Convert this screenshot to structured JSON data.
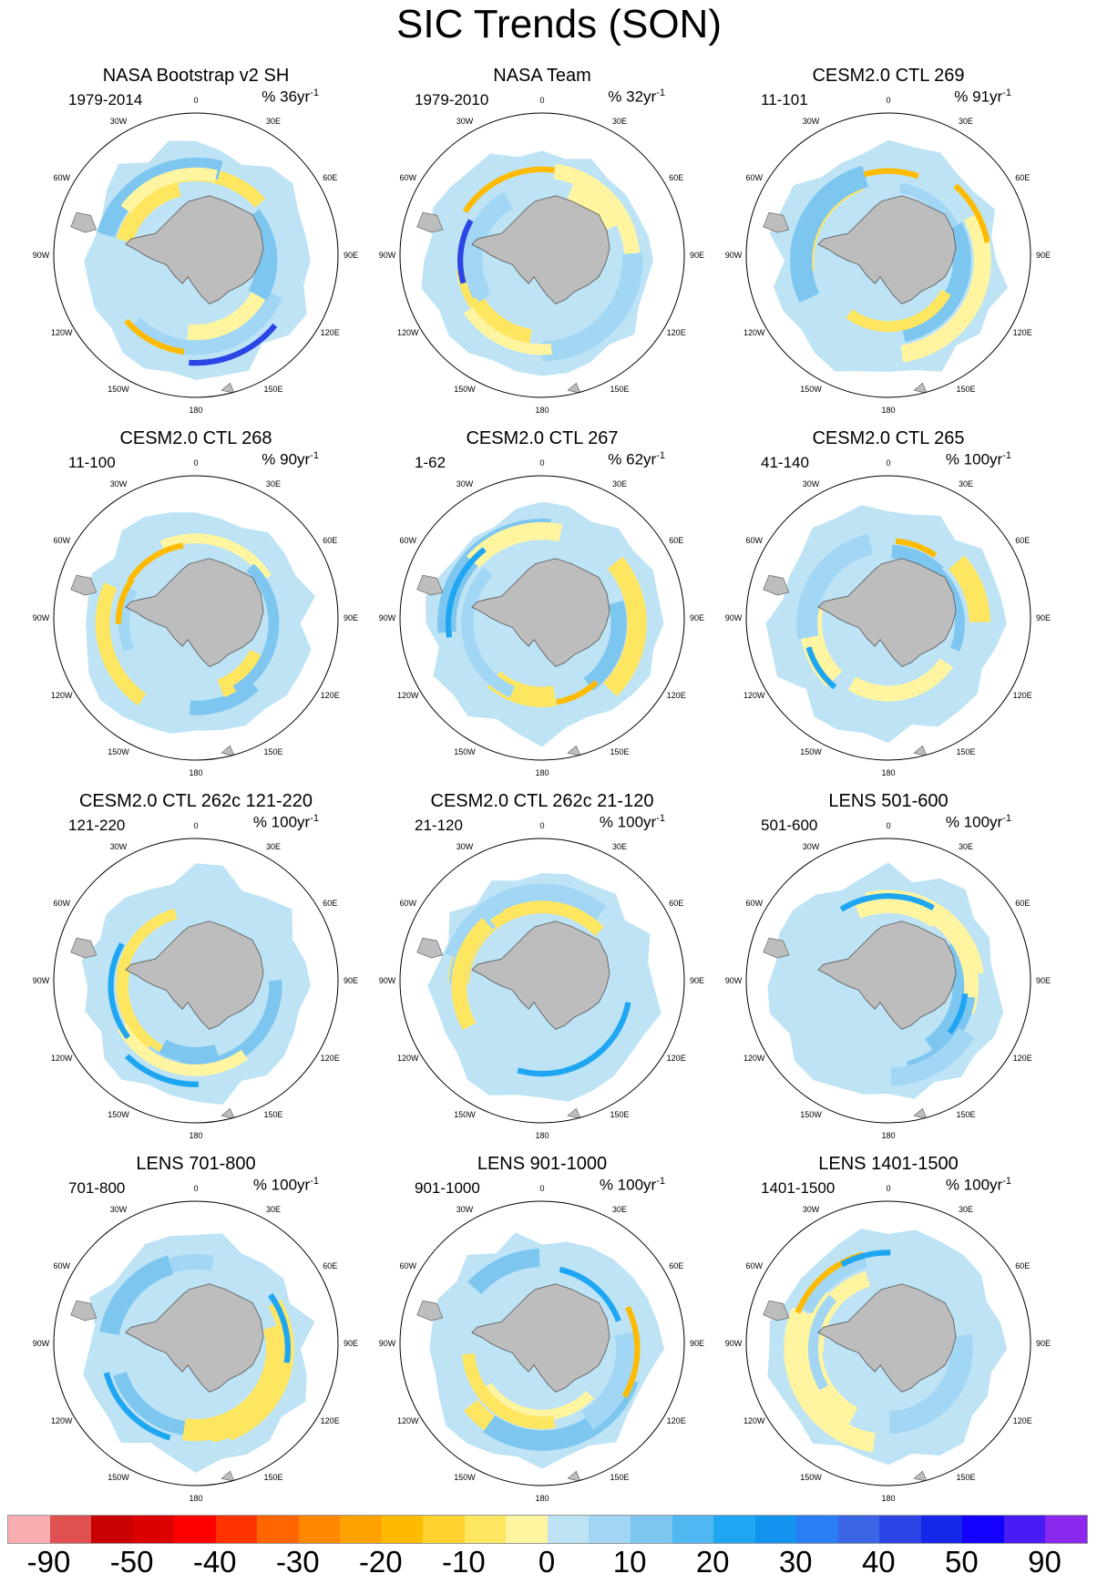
{
  "figure_title": "SIC Trends (SON)",
  "longitude_labels": [
    "0",
    "30E",
    "60E",
    "90E",
    "120E",
    "150E",
    "180",
    "150W",
    "120W",
    "90W",
    "60W",
    "30W"
  ],
  "chart_data": {
    "type": "heatmap",
    "title": "SIC Trends (SON)",
    "projection": "south polar stereographic",
    "panels": [
      {
        "title": "NASA Bootstrap v2 SH",
        "period": "1979-2014",
        "unit_prefix": "% 36yr",
        "unit_sup": "-1",
        "style": "obs",
        "seed": 1
      },
      {
        "title": "NASA Team",
        "period": "1979-2010",
        "unit_prefix": "% 32yr",
        "unit_sup": "-1",
        "style": "obs",
        "seed": 2
      },
      {
        "title": "CESM2.0 CTL 269",
        "period": "11-101",
        "unit_prefix": "% 91yr",
        "unit_sup": "-1",
        "style": "model",
        "seed": 3
      },
      {
        "title": "CESM2.0 CTL 268",
        "period": "11-100",
        "unit_prefix": "% 90yr",
        "unit_sup": "-1",
        "style": "model",
        "seed": 4
      },
      {
        "title": "CESM2.0 CTL 267",
        "period": "1-62",
        "unit_prefix": "% 62yr",
        "unit_sup": "-1",
        "style": "model",
        "seed": 5
      },
      {
        "title": "CESM2.0 CTL 265",
        "period": "41-140",
        "unit_prefix": "% 100yr",
        "unit_sup": "-1",
        "style": "model",
        "seed": 6
      },
      {
        "title": "CESM2.0 CTL 262c 121-220",
        "period": "121-220",
        "unit_prefix": "% 100yr",
        "unit_sup": "-1",
        "style": "model",
        "seed": 7
      },
      {
        "title": "CESM2.0 CTL 262c 21-120",
        "period": "21-120",
        "unit_prefix": "% 100yr",
        "unit_sup": "-1",
        "style": "model",
        "seed": 8
      },
      {
        "title": "LENS 501-600",
        "period": "501-600",
        "unit_prefix": "% 100yr",
        "unit_sup": "-1",
        "style": "model",
        "seed": 9
      },
      {
        "title": "LENS 701-800",
        "period": "701-800",
        "unit_prefix": "% 100yr",
        "unit_sup": "-1",
        "style": "model",
        "seed": 10
      },
      {
        "title": "LENS 901-1000",
        "period": "901-1000",
        "unit_prefix": "% 100yr",
        "unit_sup": "-1",
        "style": "model",
        "seed": 11
      },
      {
        "title": "LENS 1401-1500",
        "period": "1401-1500",
        "unit_prefix": "% 100yr",
        "unit_sup": "-1",
        "style": "model",
        "seed": 12
      }
    ],
    "colorbar": {
      "colors": [
        "#f8aeb0",
        "#e05050",
        "#c80000",
        "#dc0000",
        "#ff0000",
        "#ff3300",
        "#ff6600",
        "#ff8800",
        "#ffa200",
        "#ffbb00",
        "#ffd230",
        "#ffe660",
        "#fff5a0",
        "#bde3f5",
        "#a2d6f5",
        "#7dc6f0",
        "#4fb8f2",
        "#1fa6f2",
        "#1493ee",
        "#2a7ef4",
        "#3a66e6",
        "#2a44e6",
        "#1428e8",
        "#1400ff",
        "#4a1cf5",
        "#8a28ee"
      ],
      "tick_labels": [
        "-90",
        "-50",
        "-40",
        "-30",
        "-20",
        "-10",
        "0",
        "10",
        "20",
        "30",
        "40",
        "50",
        "90"
      ],
      "tick_values": [
        -90,
        -50,
        -40,
        -30,
        -20,
        -10,
        0,
        10,
        20,
        30,
        40,
        50,
        90
      ]
    }
  }
}
